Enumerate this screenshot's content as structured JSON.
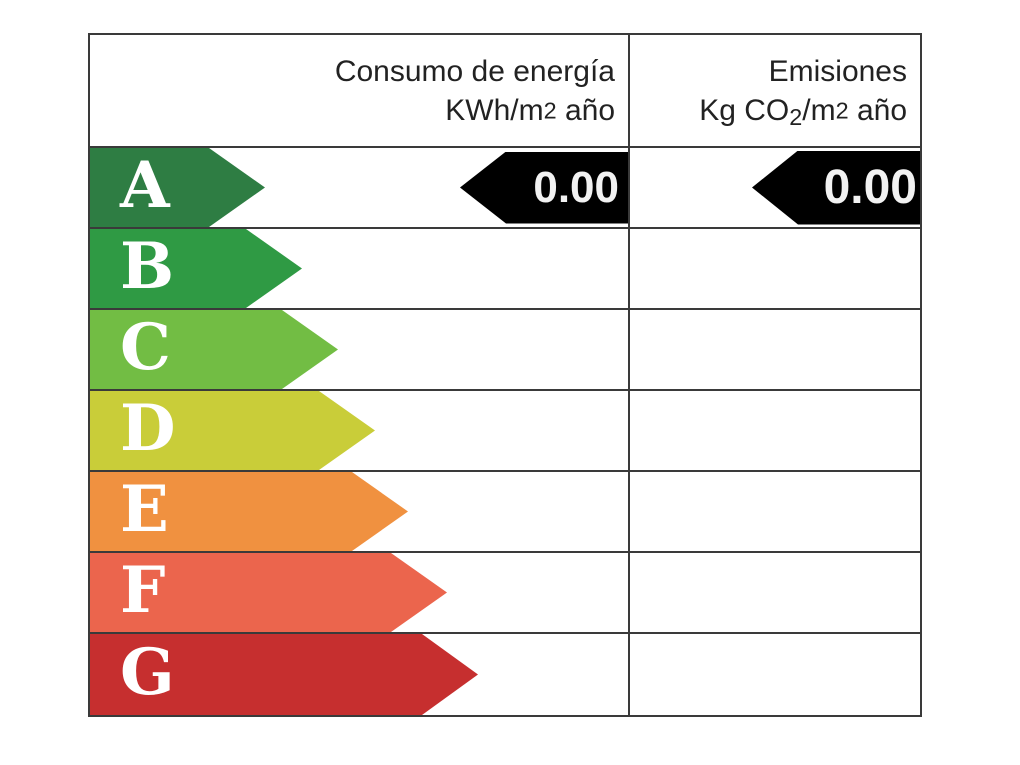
{
  "page": {
    "background": "#ffffff"
  },
  "table": {
    "border_color": "#3a3a3a",
    "header": {
      "energy_col": {
        "title": "Consumo de energía",
        "unit_prefix": "KWh/m",
        "unit_exp": "2",
        "unit_suffix": " año"
      },
      "emissions_col": {
        "title": "Emisiones",
        "unit_prefix": "Kg CO",
        "unit_sub": "2",
        "unit_mid": "/m",
        "unit_exp": "2",
        "unit_suffix": " año"
      }
    },
    "ratings": [
      {
        "letter": "A",
        "color": "#2e7d43",
        "arrow_width": 175
      },
      {
        "letter": "B",
        "color": "#2f9a44",
        "arrow_width": 212
      },
      {
        "letter": "C",
        "color": "#72bd44",
        "arrow_width": 248
      },
      {
        "letter": "D",
        "color": "#c9cd39",
        "arrow_width": 285
      },
      {
        "letter": "E",
        "color": "#f09140",
        "arrow_width": 318
      },
      {
        "letter": "F",
        "color": "#eb654d",
        "arrow_width": 357
      },
      {
        "letter": "G",
        "color": "#c62f2f",
        "arrow_width": 388
      }
    ],
    "indicators": {
      "arrow_color": "#000000",
      "text_color": "#f2f2f2",
      "energy": {
        "value": "0.00",
        "rating_row": "A"
      },
      "emissions": {
        "value": "0.00",
        "rating_row": "A"
      }
    }
  },
  "chart_data": {
    "type": "table",
    "title": "",
    "columns": [
      "Consumo de energía KWh/m2 año",
      "Emisiones Kg CO2/m2 año"
    ],
    "categories": [
      "A",
      "B",
      "C",
      "D",
      "E",
      "F",
      "G"
    ],
    "selected_rating": "A",
    "values": {
      "consumo_kwh_m2_ano": 0.0,
      "emisiones_kg_co2_m2_ano": 0.0
    },
    "layout": "rating arrows grow left-to-right from A (shortest, dark green) to G (longest, red); black left-pointing value arrows sit in row A of each column"
  }
}
